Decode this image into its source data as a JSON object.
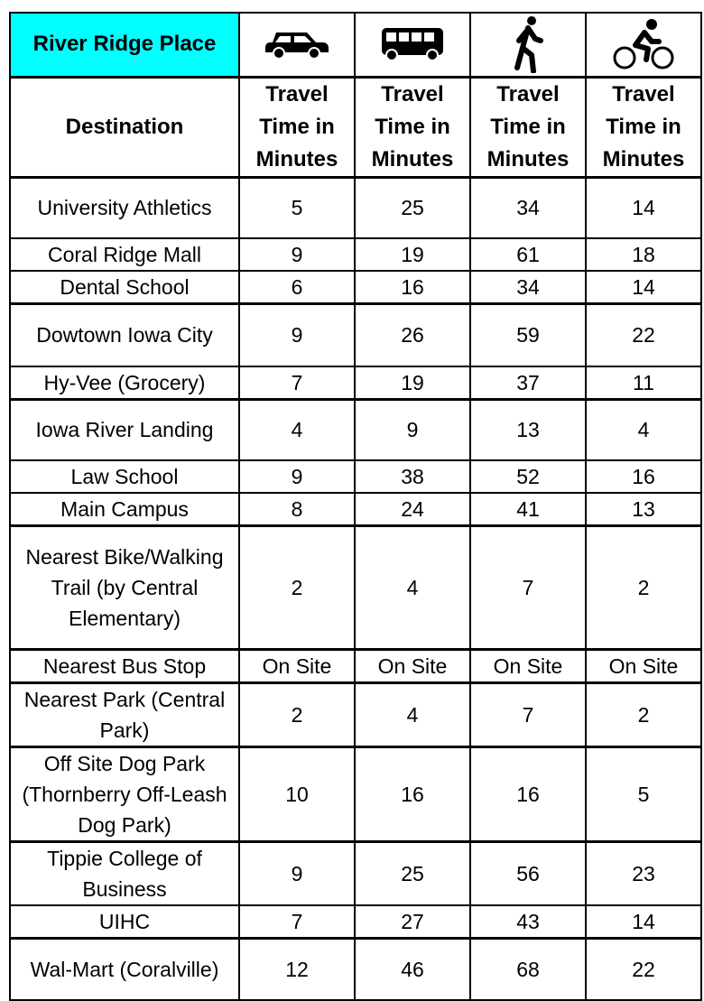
{
  "table": {
    "title": "River Ridge Place",
    "mode_icons": [
      "car-icon",
      "bus-icon",
      "walking-icon",
      "bicycle-icon"
    ],
    "destination_header": "Destination",
    "column_header": "Travel Time in Minutes",
    "title_bg_color": "#00ffff",
    "rows": [
      {
        "destination": "University Athletics",
        "car": "5",
        "bus": "25",
        "walk": "34",
        "bike": "14"
      },
      {
        "destination": "Coral Ridge Mall",
        "car": "9",
        "bus": "19",
        "walk": "61",
        "bike": "18"
      },
      {
        "destination": "Dental School",
        "car": "6",
        "bus": "16",
        "walk": "34",
        "bike": "14"
      },
      {
        "destination": "Dowtown Iowa City",
        "car": "9",
        "bus": "26",
        "walk": "59",
        "bike": "22"
      },
      {
        "destination": "Hy-Vee (Grocery)",
        "car": "7",
        "bus": "19",
        "walk": "37",
        "bike": "11"
      },
      {
        "destination": "Iowa River Landing",
        "car": "4",
        "bus": "9",
        "walk": "13",
        "bike": "4"
      },
      {
        "destination": "Law School",
        "car": "9",
        "bus": "38",
        "walk": "52",
        "bike": "16"
      },
      {
        "destination": "Main Campus",
        "car": "8",
        "bus": "24",
        "walk": "41",
        "bike": "13"
      },
      {
        "destination": "Nearest Bike/Walking Trail (by Central Elementary)",
        "car": "2",
        "bus": "4",
        "walk": "7",
        "bike": "2"
      },
      {
        "destination": "Nearest Bus Stop",
        "car": "On Site",
        "bus": "On Site",
        "walk": "On Site",
        "bike": "On Site"
      },
      {
        "destination": "Nearest Park (Central Park)",
        "car": "2",
        "bus": "4",
        "walk": "7",
        "bike": "2"
      },
      {
        "destination": "Off Site Dog Park (Thornberry Off-Leash Dog Park)",
        "car": "10",
        "bus": "16",
        "walk": "16",
        "bike": "5"
      },
      {
        "destination": "Tippie College of Business",
        "car": "9",
        "bus": "25",
        "walk": "56",
        "bike": "23"
      },
      {
        "destination": "UIHC",
        "car": "7",
        "bus": "27",
        "walk": "43",
        "bike": "14"
      },
      {
        "destination": "Wal-Mart (Coralville)",
        "car": "12",
        "bus": "46",
        "walk": "68",
        "bike": "22"
      }
    ]
  }
}
